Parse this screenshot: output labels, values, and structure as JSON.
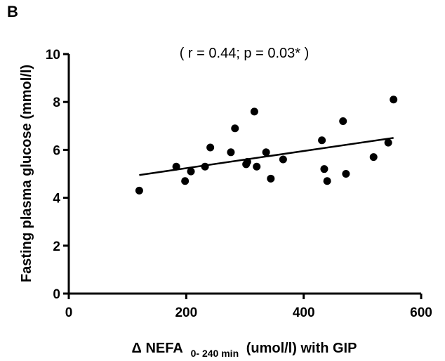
{
  "chart_data": {
    "type": "scatter",
    "panel_label": "B",
    "annotation": "( r = 0.44; p = 0.03* )",
    "xlabel": {
      "prefix": "Δ NEFA",
      "subscript": "0- 240 min",
      "suffix": "(umol/l) with GIP"
    },
    "ylabel": "Fasting plasma glucose (mmol/l)",
    "xlim": [
      0,
      600
    ],
    "ylim": [
      0,
      10
    ],
    "xticks": [
      0,
      200,
      400,
      600
    ],
    "yticks": [
      0,
      2,
      4,
      6,
      8,
      10
    ],
    "grid": false,
    "points": [
      {
        "x": 120,
        "y": 4.3
      },
      {
        "x": 183,
        "y": 5.3
      },
      {
        "x": 198,
        "y": 4.7
      },
      {
        "x": 208,
        "y": 5.1
      },
      {
        "x": 232,
        "y": 5.3
      },
      {
        "x": 241,
        "y": 6.1
      },
      {
        "x": 276,
        "y": 5.9
      },
      {
        "x": 283,
        "y": 6.9
      },
      {
        "x": 302,
        "y": 5.4
      },
      {
        "x": 304,
        "y": 5.5
      },
      {
        "x": 316,
        "y": 7.6
      },
      {
        "x": 320,
        "y": 5.3
      },
      {
        "x": 336,
        "y": 5.9
      },
      {
        "x": 344,
        "y": 4.8
      },
      {
        "x": 365,
        "y": 5.6
      },
      {
        "x": 431,
        "y": 6.4
      },
      {
        "x": 435,
        "y": 5.2
      },
      {
        "x": 440,
        "y": 4.7
      },
      {
        "x": 467,
        "y": 7.2
      },
      {
        "x": 472,
        "y": 5.0
      },
      {
        "x": 519,
        "y": 5.7
      },
      {
        "x": 544,
        "y": 6.3
      },
      {
        "x": 553,
        "y": 8.1
      }
    ],
    "fit_line": {
      "x": [
        120,
        553
      ],
      "y": [
        4.95,
        6.5
      ]
    }
  }
}
